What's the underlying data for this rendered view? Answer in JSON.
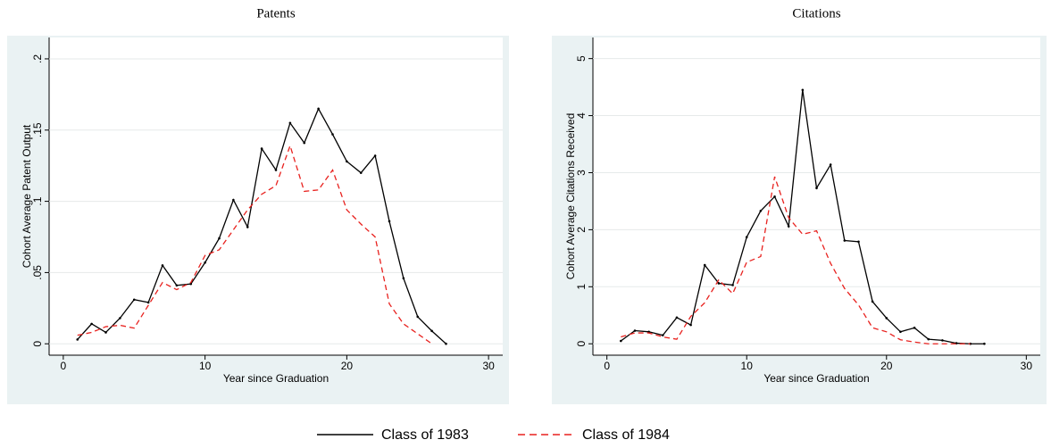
{
  "chart_data": [
    {
      "type": "line",
      "title": "Patents",
      "x_label": "Year since Graduation",
      "y_label": "Cohort Average Patent Output",
      "xlim": [
        -1,
        31
      ],
      "ylim": [
        -0.008,
        0.215
      ],
      "xticks": [
        0,
        10,
        20,
        30
      ],
      "yticks": [
        0,
        {
          "value": 0.05,
          "label": ".05"
        },
        {
          "value": 0.1,
          "label": ".1"
        },
        {
          "value": 0.15,
          "label": ".15"
        },
        {
          "value": 0.2,
          "label": ".2"
        }
      ],
      "grid": true,
      "series": [
        {
          "name": "Class of 1983",
          "color": "#000000",
          "dash": "solid",
          "x": [
            1,
            2,
            3,
            4,
            5,
            6,
            7,
            8,
            9,
            10,
            11,
            12,
            13,
            14,
            15,
            16,
            17,
            18,
            19,
            20,
            21,
            22,
            23,
            24,
            25,
            26,
            27
          ],
          "values": [
            0.003,
            0.014,
            0.008,
            0.018,
            0.031,
            0.029,
            0.055,
            0.041,
            0.042,
            0.057,
            0.074,
            0.101,
            0.082,
            0.137,
            0.122,
            0.155,
            0.141,
            0.165,
            0.147,
            0.128,
            0.12,
            0.132,
            0.086,
            0.046,
            0.019,
            0.009,
            0.0
          ]
        },
        {
          "name": "Class of 1984",
          "color": "#e8211e",
          "dash": "dashed",
          "x": [
            1,
            2,
            3,
            4,
            5,
            6,
            7,
            8,
            9,
            10,
            11,
            12,
            13,
            14,
            15,
            16,
            17,
            18,
            19,
            20,
            21,
            22,
            23,
            24,
            25,
            26
          ],
          "values": [
            0.006,
            0.008,
            0.012,
            0.013,
            0.011,
            0.027,
            0.043,
            0.038,
            0.043,
            0.062,
            0.066,
            0.08,
            0.094,
            0.105,
            0.111,
            0.139,
            0.107,
            0.108,
            0.122,
            0.094,
            0.084,
            0.075,
            0.028,
            0.014,
            0.007,
            0.0
          ]
        }
      ]
    },
    {
      "type": "line",
      "title": "Citations",
      "x_label": "Year since Graduation",
      "y_label": "Cohort Average Citations Received",
      "xlim": [
        -1,
        31
      ],
      "ylim": [
        -0.2,
        5.37
      ],
      "xticks": [
        0,
        10,
        20,
        30
      ],
      "yticks": [
        0,
        1,
        2,
        3,
        4,
        5
      ],
      "grid": true,
      "series": [
        {
          "color": "#000000",
          "dash": "solid",
          "x": [
            1,
            2,
            3,
            4,
            5,
            6,
            7,
            8,
            9,
            10,
            11,
            12,
            13,
            14,
            15,
            16,
            17,
            18,
            19,
            20,
            21,
            22,
            23,
            24,
            25,
            26,
            27
          ],
          "values": [
            0.05,
            0.23,
            0.21,
            0.15,
            0.46,
            0.33,
            1.38,
            1.06,
            1.03,
            1.87,
            2.33,
            2.58,
            2.06,
            4.45,
            2.73,
            3.14,
            1.81,
            1.79,
            0.74,
            0.45,
            0.21,
            0.28,
            0.08,
            0.06,
            0.01,
            0.0,
            0.0
          ]
        },
        {
          "color": "#e8211e",
          "dash": "dashed",
          "x": [
            1,
            2,
            3,
            4,
            5,
            6,
            7,
            8,
            9,
            10,
            11,
            12,
            13,
            14,
            15,
            16,
            17,
            18,
            19,
            20,
            21,
            22,
            23,
            24,
            25,
            26
          ],
          "values": [
            0.12,
            0.19,
            0.19,
            0.12,
            0.08,
            0.48,
            0.72,
            1.12,
            0.88,
            1.43,
            1.53,
            2.93,
            2.21,
            1.92,
            1.98,
            1.41,
            0.97,
            0.68,
            0.28,
            0.21,
            0.07,
            0.03,
            0.0,
            0.0,
            0.0,
            0.0
          ]
        }
      ]
    }
  ]
}
